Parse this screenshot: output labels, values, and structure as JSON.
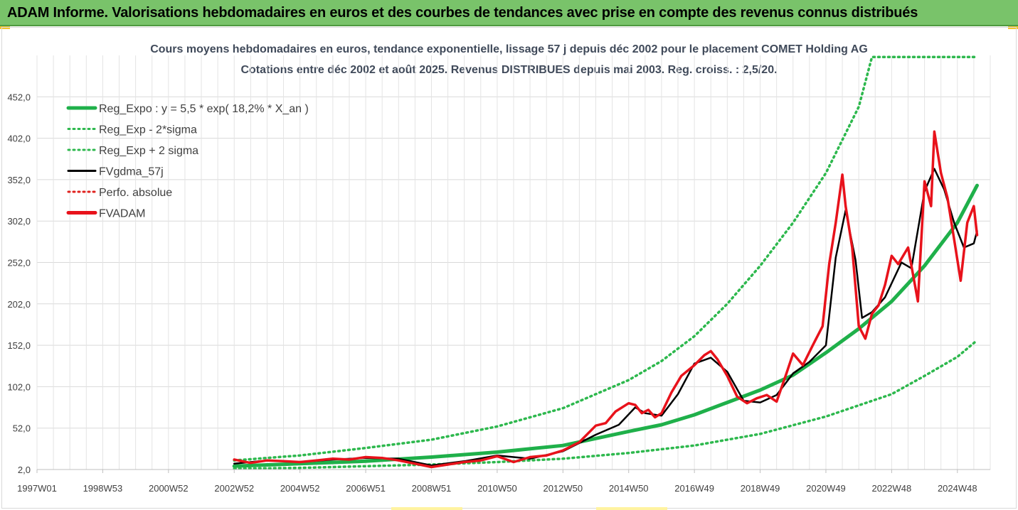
{
  "banner": {
    "title": "ADAM Informe. Valorisations hebdomadaires en euros et des courbes de tendances avec prise en compte des revenus connus distribués"
  },
  "colors": {
    "banner": "#79c36a",
    "reg_expo": "#1fb04a",
    "sigma": "#2db84d",
    "fvgdma": "#000000",
    "perfo": "#e0211d",
    "fvadam": "#e8121b",
    "grid": "#d9d9d9"
  },
  "chart_data": {
    "type": "line",
    "title": "Cours moyens hebdomadaires en euros, tendance exponentielle, lissage 57 j depuis déc 2002 pour le placement COMET Holding AG",
    "subtitle": "Cotations entre déc 2002 et août 2025. Revenus DISTRIBUES depuis mai 2003. Reg. croiss. : 2,5/20.",
    "xlabel": "",
    "ylabel": "",
    "x_start": 1997.0,
    "x_end": 2026.0,
    "x_ticks": [
      {
        "label": "1997W01",
        "x": 1997.0
      },
      {
        "label": "1998W53",
        "x": 1999.0
      },
      {
        "label": "2000W52",
        "x": 2001.0
      },
      {
        "label": "2002W52",
        "x": 2003.0
      },
      {
        "label": "2004W52",
        "x": 2005.0
      },
      {
        "label": "2006W51",
        "x": 2007.0
      },
      {
        "label": "2008W51",
        "x": 2009.0
      },
      {
        "label": "2010W50",
        "x": 2011.0
      },
      {
        "label": "2012W50",
        "x": 2013.0
      },
      {
        "label": "2014W50",
        "x": 2015.0
      },
      {
        "label": "2016W49",
        "x": 2017.0
      },
      {
        "label": "2018W49",
        "x": 2019.0
      },
      {
        "label": "2020W49",
        "x": 2021.0
      },
      {
        "label": "2022W48",
        "x": 2023.0
      },
      {
        "label": "2024W48",
        "x": 2025.0
      }
    ],
    "y_ticks": [
      "2,0",
      "52,0",
      "102,0",
      "152,0",
      "202,0",
      "252,0",
      "302,0",
      "352,0",
      "402,0",
      "452,0"
    ],
    "y_tick_values": [
      2,
      52,
      102,
      152,
      202,
      252,
      302,
      352,
      402,
      452
    ],
    "ylim": [
      2,
      502
    ],
    "grid": true,
    "legend_position": "top-left",
    "legend": [
      {
        "label": "Reg_Expo : y = 5,5 * exp( 18,2% *  X_an )",
        "style": "solid-thick",
        "color": "#1fb04a"
      },
      {
        "label": "Reg_Exp - 2*sigma",
        "style": "dotted",
        "color": "#2db84d"
      },
      {
        "label": "Reg_Exp + 2 sigma",
        "style": "dotted",
        "color": "#2db84d"
      },
      {
        "label": "FVgdma_57j",
        "style": "solid",
        "color": "#000000"
      },
      {
        "label": "Perfo. absolue",
        "style": "dotted",
        "color": "#e0211d"
      },
      {
        "label": "FVADAM",
        "style": "solid-thick",
        "color": "#e8121b"
      }
    ],
    "series": [
      {
        "name": "Reg_Expo : y = 5,5 * exp( 18,2% *  X_an )",
        "x": [
          2003.0,
          2005.0,
          2007.0,
          2009.0,
          2011.0,
          2013.0,
          2015.0,
          2016.0,
          2017.0,
          2018.0,
          2019.0,
          2020.0,
          2021.0,
          2022.0,
          2023.0,
          2024.0,
          2025.0,
          2025.6
        ],
        "y": [
          6,
          9,
          12,
          17,
          23,
          31,
          48,
          56,
          68,
          83,
          98,
          116,
          143,
          172,
          205,
          248,
          300,
          345
        ]
      },
      {
        "name": "Reg_Exp - 2*sigma",
        "x": [
          2003.0,
          2005.0,
          2007.0,
          2009.0,
          2011.0,
          2013.0,
          2015.0,
          2017.0,
          2019.0,
          2021.0,
          2023.0,
          2024.0,
          2025.0,
          2025.6
        ],
        "y": [
          3,
          4,
          6,
          8,
          11,
          15,
          22,
          31,
          45,
          66,
          93,
          115,
          138,
          158
        ]
      },
      {
        "name": "Reg_Exp + 2 sigma",
        "x": [
          2003.0,
          2005.0,
          2007.0,
          2009.0,
          2011.0,
          2013.0,
          2015.0,
          2016.0,
          2017.0,
          2018.0,
          2019.0,
          2020.0,
          2021.0,
          2022.0,
          2022.4,
          2023.0,
          2024.0,
          2025.6
        ],
        "y": [
          13,
          19,
          28,
          38,
          54,
          76,
          110,
          133,
          163,
          202,
          248,
          300,
          360,
          440,
          500,
          500,
          500,
          500
        ]
      },
      {
        "name": "FVgdma_57j",
        "x": [
          2003.0,
          2004.0,
          2005.0,
          2006.0,
          2007.0,
          2008.0,
          2009.0,
          2010.0,
          2011.0,
          2012.0,
          2013.0,
          2014.0,
          2014.7,
          2015.2,
          2015.5,
          2016.0,
          2016.5,
          2017.0,
          2017.5,
          2018.0,
          2018.5,
          2019.0,
          2019.5,
          2020.0,
          2020.5,
          2021.0,
          2021.3,
          2021.6,
          2021.9,
          2022.1,
          2022.4,
          2022.8,
          2023.3,
          2023.6,
          2024.0,
          2024.3,
          2024.6,
          2024.9,
          2025.2,
          2025.5,
          2025.6
        ],
        "y": [
          9,
          13,
          11,
          14,
          16,
          15,
          7,
          12,
          19,
          15,
          24,
          44,
          56,
          77,
          70,
          67,
          93,
          130,
          137,
          120,
          85,
          83,
          92,
          118,
          132,
          152,
          258,
          315,
          255,
          185,
          192,
          210,
          252,
          245,
          338,
          365,
          340,
          300,
          270,
          275,
          290
        ]
      },
      {
        "name": "FVADAM",
        "x": [
          2003.0,
          2003.5,
          2004.0,
          2004.5,
          2005.0,
          2005.5,
          2006.0,
          2006.5,
          2007.0,
          2007.5,
          2008.0,
          2008.5,
          2009.0,
          2009.5,
          2010.0,
          2010.5,
          2011.0,
          2011.5,
          2012.0,
          2012.5,
          2013.0,
          2013.5,
          2014.0,
          2014.3,
          2014.6,
          2015.0,
          2015.2,
          2015.4,
          2015.6,
          2015.8,
          2016.0,
          2016.3,
          2016.6,
          2017.0,
          2017.3,
          2017.5,
          2017.7,
          2018.0,
          2018.3,
          2018.6,
          2018.9,
          2019.2,
          2019.5,
          2019.8,
          2020.0,
          2020.3,
          2020.6,
          2020.9,
          2021.1,
          2021.3,
          2021.5,
          2021.6,
          2021.8,
          2022.0,
          2022.2,
          2022.4,
          2022.6,
          2022.8,
          2023.0,
          2023.2,
          2023.5,
          2023.8,
          2024.0,
          2024.2,
          2024.3,
          2024.5,
          2024.7,
          2024.9,
          2025.1,
          2025.3,
          2025.5,
          2025.6
        ],
        "y": [
          14,
          10,
          13,
          12,
          11,
          13,
          15,
          14,
          17,
          16,
          13,
          9,
          5,
          8,
          11,
          13,
          18,
          11,
          17,
          19,
          25,
          35,
          55,
          58,
          72,
          82,
          80,
          70,
          74,
          65,
          70,
          95,
          115,
          128,
          140,
          145,
          135,
          115,
          90,
          82,
          88,
          92,
          84,
          118,
          142,
          128,
          152,
          175,
          250,
          300,
          358,
          320,
          270,
          175,
          160,
          190,
          200,
          225,
          260,
          250,
          270,
          205,
          350,
          320,
          410,
          360,
          330,
          280,
          230,
          300,
          320,
          285
        ]
      }
    ]
  }
}
